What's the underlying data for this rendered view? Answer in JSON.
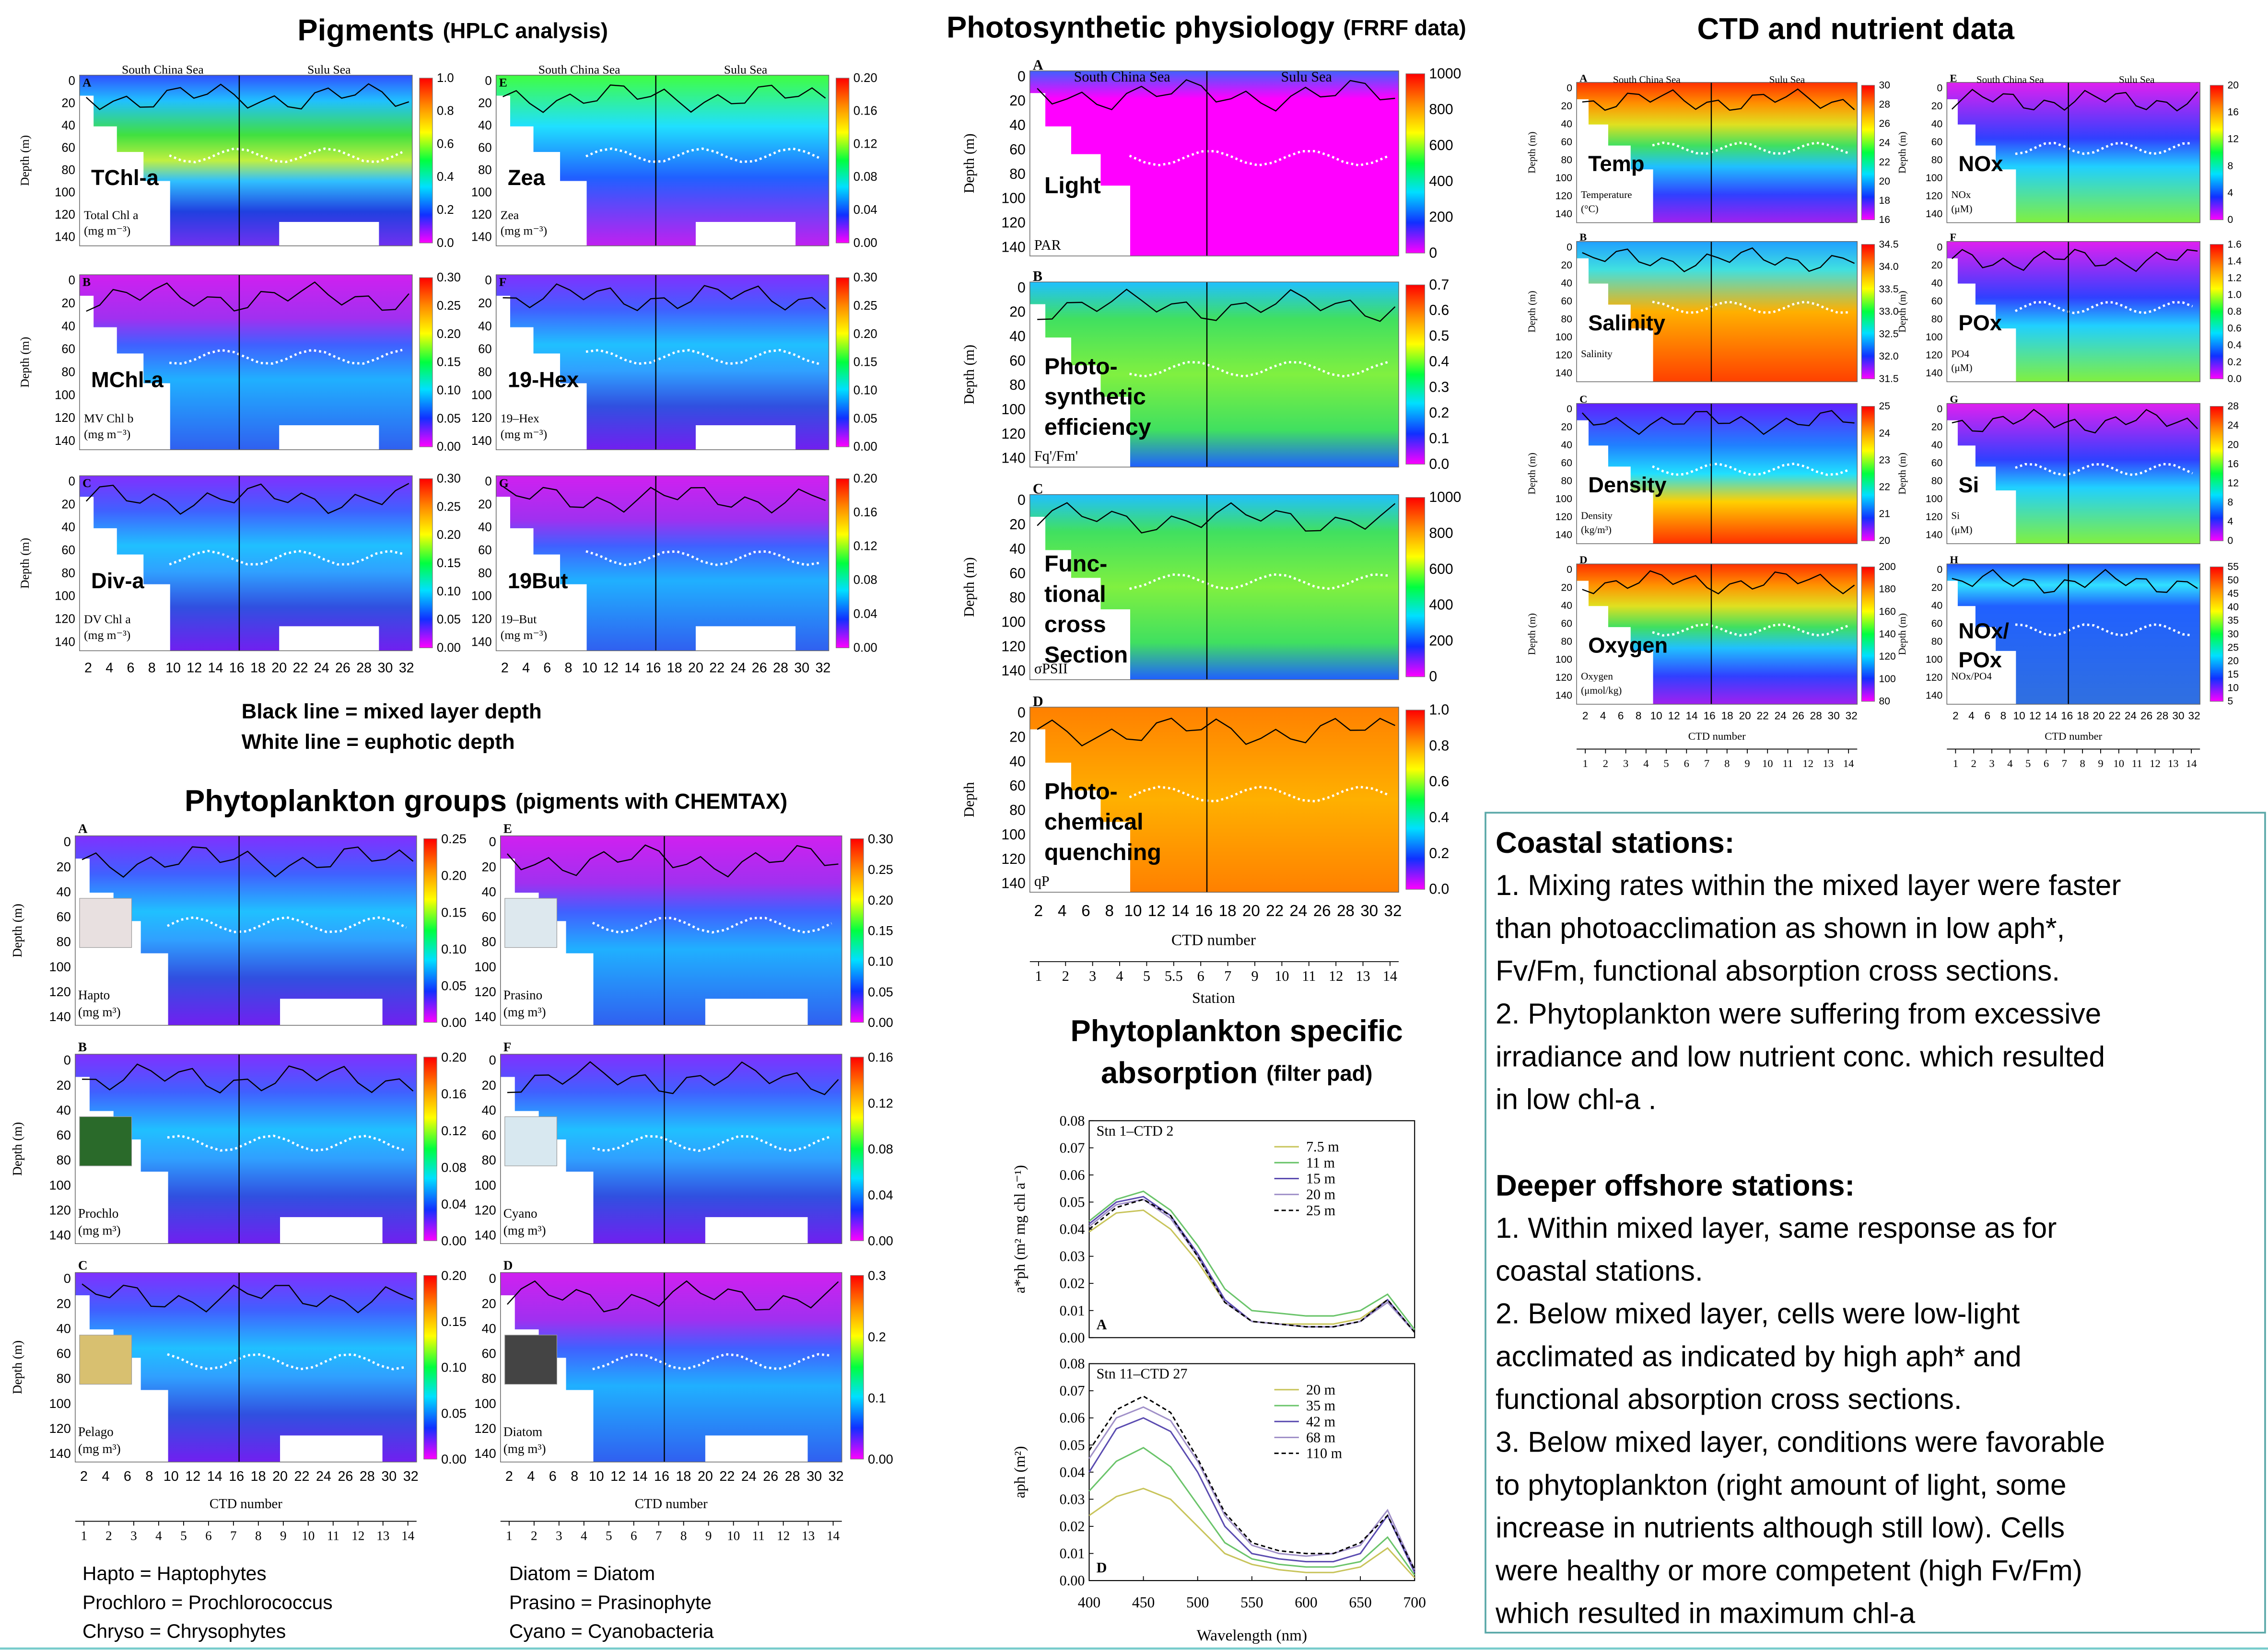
{
  "common": {
    "depth_label": "Depth (m)",
    "depth_ticks": [
      0,
      20,
      40,
      60,
      80,
      100,
      120,
      140
    ],
    "ctd_ticks": [
      2,
      4,
      6,
      8,
      10,
      12,
      14,
      16,
      18,
      20,
      22,
      24,
      26,
      28,
      30,
      32
    ],
    "ctd_label": "CTD number",
    "station_ticks": [
      1,
      2,
      3,
      4,
      5,
      6,
      7,
      8,
      9,
      10,
      11,
      12,
      13,
      14
    ],
    "region_left": "South China Sea",
    "region_right": "Sulu Sea"
  },
  "pigments": {
    "title": "Pigments",
    "subtitle": "(HPLC analysis)",
    "panels": [
      {
        "letter": "A",
        "name": "TChl-a",
        "label": "Total Chl a",
        "unit": "(mg m⁻³)",
        "cbar": [
          "0.0",
          "0.2",
          "0.4",
          "0.6",
          "0.8",
          "1.0"
        ]
      },
      {
        "letter": "B",
        "name": "MChl-a",
        "label": "MV Chl b",
        "unit": "(mg m⁻³)",
        "cbar": [
          "0.00",
          "0.05",
          "0.10",
          "0.15",
          "0.20",
          "0.25",
          "0.30"
        ]
      },
      {
        "letter": "C",
        "name": "Div-a",
        "label": "DV Chl a",
        "unit": "(mg m⁻³)",
        "cbar": [
          "0.00",
          "0.05",
          "0.10",
          "0.15",
          "0.20",
          "0.25",
          "0.30"
        ]
      },
      {
        "letter": "E",
        "name": "Zea",
        "label": "Zea",
        "unit": "(mg m⁻³)",
        "cbar": [
          "0.00",
          "0.04",
          "0.08",
          "0.12",
          "0.16",
          "0.20"
        ]
      },
      {
        "letter": "F",
        "name": "19-Hex",
        "label": "19–Hex",
        "unit": "(mg m⁻³)",
        "cbar": [
          "0.00",
          "0.05",
          "0.10",
          "0.15",
          "0.20",
          "0.25",
          "0.30"
        ]
      },
      {
        "letter": "G",
        "name": "19But",
        "label": "19–But",
        "unit": "(mg m⁻³)",
        "cbar": [
          "0.00",
          "0.04",
          "0.08",
          "0.12",
          "0.16",
          "0.20"
        ]
      }
    ],
    "legend": [
      "Black line =  mixed layer depth",
      "White line =  euphotic depth"
    ]
  },
  "groups": {
    "title": "Phytoplankton groups",
    "subtitle": "(pigments with CHEMTAX)",
    "panels": [
      {
        "letter": "A",
        "label": "Hapto",
        "unit": "(mg m³)",
        "cbar": [
          "0.00",
          "0.05",
          "0.10",
          "0.15",
          "0.20",
          "0.25"
        ]
      },
      {
        "letter": "B",
        "label": "Prochlo",
        "unit": "(mg m³)",
        "cbar": [
          "0.00",
          "0.04",
          "0.08",
          "0.12",
          "0.16",
          "0.20"
        ]
      },
      {
        "letter": "C",
        "label": "Pelago",
        "unit": "(mg m³)",
        "cbar": [
          "0.00",
          "0.05",
          "0.10",
          "0.15",
          "0.20"
        ]
      },
      {
        "letter": "E",
        "label": "Prasino",
        "unit": "(mg m³)",
        "cbar": [
          "0.00",
          "0.05",
          "0.10",
          "0.15",
          "0.20",
          "0.25",
          "0.30"
        ]
      },
      {
        "letter": "F",
        "label": "Cyano",
        "unit": "(mg m³)",
        "cbar": [
          "0.00",
          "0.04",
          "0.08",
          "0.12",
          "0.16"
        ]
      },
      {
        "letter": "D",
        "label": "Diatom",
        "unit": "(mg m³)",
        "cbar": [
          "0.00",
          "0.1",
          "0.2",
          "0.3"
        ]
      }
    ],
    "legend_left": [
      "Hapto = Haptophytes",
      "Prochloro = Prochlorococcus",
      "Chryso = Chrysophytes"
    ],
    "legend_right": [
      "Diatom = Diatom",
      "Prasino = Prasinophyte",
      "Cyano = Cyanobacteria"
    ]
  },
  "physiology": {
    "title": "Photosynthetic physiology",
    "subtitle": "(FRRF  data)",
    "panels": [
      {
        "letter": "A",
        "name": [
          "Light"
        ],
        "label": "PAR",
        "cbar": [
          "0",
          "200",
          "400",
          "600",
          "800",
          "1000"
        ]
      },
      {
        "letter": "B",
        "name": [
          "Photo-",
          "synthetic",
          "efficiency"
        ],
        "label": "Fq'/Fm'",
        "cbar": [
          "0.0",
          "0.1",
          "0.2",
          "0.3",
          "0.4",
          "0.5",
          "0.6",
          "0.7"
        ]
      },
      {
        "letter": "C",
        "name": [
          "Func-",
          "tional",
          "cross",
          "Section"
        ],
        "label": "σPSII",
        "cbar": [
          "0",
          "200",
          "400",
          "600",
          "800",
          "1000"
        ]
      },
      {
        "letter": "D",
        "name": [
          "Photo-",
          "chemical",
          "quenching"
        ],
        "label": "qP",
        "cbar": [
          "0.0",
          "0.2",
          "0.4",
          "0.6",
          "0.8",
          "1.0"
        ],
        "ylabel": "Depth"
      }
    ],
    "station_ticks": [
      1,
      2,
      3,
      4,
      5,
      5.5,
      6,
      7,
      9,
      10,
      11,
      12,
      13,
      14
    ],
    "station_label": "Station"
  },
  "ctd": {
    "title": "CTD and nutrient data",
    "panels": [
      {
        "letter": "A",
        "name": [
          "Temp"
        ],
        "label": "Temperature",
        "unit": "(°C)",
        "cbar": [
          "16",
          "18",
          "20",
          "22",
          "24",
          "26",
          "28",
          "30"
        ]
      },
      {
        "letter": "B",
        "name": [
          "Salinity"
        ],
        "label": "Salinity",
        "cbar": [
          "31.5",
          "32.0",
          "32.5",
          "33.0",
          "33.5",
          "34.0",
          "34.5"
        ]
      },
      {
        "letter": "C",
        "name": [
          "Density"
        ],
        "label": "Density",
        "unit": "(kg/m³)",
        "cbar": [
          "20",
          "21",
          "22",
          "23",
          "24",
          "25"
        ]
      },
      {
        "letter": "D",
        "name": [
          "Oxygen"
        ],
        "label": "Oxygen",
        "unit": "(μmol/kg)",
        "cbar": [
          "80",
          "100",
          "120",
          "140",
          "160",
          "180",
          "200"
        ]
      },
      {
        "letter": "E",
        "name": [
          "NOx"
        ],
        "label": "NOx",
        "unit": "(μM)",
        "cbar": [
          "0",
          "4",
          "8",
          "12",
          "16",
          "20"
        ]
      },
      {
        "letter": "F",
        "name": [
          "POx"
        ],
        "label": "PO4",
        "unit": "(μM)",
        "cbar": [
          "0.0",
          "0.2",
          "0.4",
          "0.6",
          "0.8",
          "1.0",
          "1.2",
          "1.4",
          "1.6"
        ]
      },
      {
        "letter": "G",
        "name": [
          "Si"
        ],
        "label": "Si",
        "unit": "(μM)",
        "cbar": [
          "0",
          "4",
          "8",
          "12",
          "16",
          "20",
          "24",
          "28"
        ]
      },
      {
        "letter": "H",
        "name": [
          "NOx/",
          "POx"
        ],
        "label": "NOx/PO4",
        "cbar": [
          "5",
          "10",
          "15",
          "20",
          "25",
          "30",
          "35",
          "40",
          "45",
          "50",
          "55"
        ]
      }
    ]
  },
  "absorption": {
    "title": [
      "Phytoplankton specific",
      "absorption"
    ],
    "subtitle": "(filter pad)"
  },
  "chart_data": [
    {
      "type": "line",
      "title": "Stn 1–CTD 2",
      "letter": "A",
      "ylabel": "a*ph (m² mg chl a⁻¹)",
      "x": [
        400,
        425,
        450,
        475,
        500,
        525,
        550,
        575,
        600,
        625,
        650,
        675,
        700
      ],
      "xlim": [
        400,
        700
      ],
      "ylim": [
        0,
        0.08
      ],
      "yticks": [
        {
          "value": 0,
          "label": "0.00"
        },
        {
          "value": 0.01,
          "label": "0.01"
        },
        {
          "value": 0.02,
          "label": "0.02"
        },
        {
          "value": 0.03,
          "label": "0.03"
        },
        {
          "value": 0.04,
          "label": "0.04"
        },
        {
          "value": 0.05,
          "label": "0.05"
        },
        {
          "value": 0.06,
          "label": "0.06"
        },
        {
          "value": 0.07,
          "label": "0.07"
        },
        {
          "value": 0.08,
          "label": "0.08"
        }
      ],
      "series": [
        {
          "name": "7.5 m",
          "color": "#c8c45a",
          "values": [
            0.039,
            0.046,
            0.047,
            0.04,
            0.028,
            0.013,
            0.006,
            0.005,
            0.005,
            0.005,
            0.007,
            0.014,
            0.002
          ]
        },
        {
          "name": "11 m",
          "color": "#6ac46a",
          "values": [
            0.043,
            0.051,
            0.054,
            0.047,
            0.034,
            0.018,
            0.01,
            0.009,
            0.008,
            0.008,
            0.01,
            0.016,
            0.003
          ]
        },
        {
          "name": "15 m",
          "color": "#5a4bb0",
          "values": [
            0.042,
            0.05,
            0.052,
            0.045,
            0.031,
            0.014,
            0.006,
            0.005,
            0.004,
            0.004,
            0.006,
            0.014,
            0.002
          ]
        },
        {
          "name": "20 m",
          "color": "#a090c8",
          "values": [
            0.041,
            0.049,
            0.051,
            0.044,
            0.03,
            0.013,
            0.006,
            0.005,
            0.004,
            0.004,
            0.006,
            0.013,
            0.002
          ]
        },
        {
          "name": "25 m",
          "color": "#000000",
          "dash": true,
          "values": [
            0.04,
            0.048,
            0.051,
            0.045,
            0.03,
            0.013,
            0.006,
            0.005,
            0.004,
            0.004,
            0.006,
            0.014,
            0.002
          ]
        }
      ]
    },
    {
      "type": "line",
      "title": "Stn 11–CTD 27",
      "letter": "D",
      "ylabel": "aph (m²)",
      "xlabel": "Wavelength (nm)",
      "x": [
        400,
        425,
        450,
        475,
        500,
        525,
        550,
        575,
        600,
        625,
        650,
        675,
        700
      ],
      "xlim": [
        400,
        700
      ],
      "xticks": [
        400,
        450,
        500,
        550,
        600,
        650,
        700
      ],
      "ylim": [
        0,
        0.08
      ],
      "yticks": [
        {
          "value": 0,
          "label": "0.00"
        },
        {
          "value": 0.01,
          "label": "0.01"
        },
        {
          "value": 0.02,
          "label": "0.02"
        },
        {
          "value": 0.03,
          "label": "0.03"
        },
        {
          "value": 0.04,
          "label": "0.04"
        },
        {
          "value": 0.05,
          "label": "0.05"
        },
        {
          "value": 0.06,
          "label": "0.06"
        },
        {
          "value": 0.07,
          "label": "0.07"
        },
        {
          "value": 0.08,
          "label": "0.08"
        }
      ],
      "series": [
        {
          "name": "20 m",
          "color": "#c8c45a",
          "values": [
            0.024,
            0.031,
            0.034,
            0.03,
            0.02,
            0.01,
            0.006,
            0.004,
            0.003,
            0.003,
            0.005,
            0.012,
            0.001
          ]
        },
        {
          "name": "35 m",
          "color": "#6ac46a",
          "values": [
            0.033,
            0.044,
            0.049,
            0.042,
            0.028,
            0.014,
            0.008,
            0.006,
            0.005,
            0.005,
            0.007,
            0.016,
            0.002
          ]
        },
        {
          "name": "42 m",
          "color": "#5a4bb0",
          "values": [
            0.04,
            0.056,
            0.06,
            0.055,
            0.04,
            0.02,
            0.01,
            0.008,
            0.007,
            0.007,
            0.01,
            0.024,
            0.003
          ]
        },
        {
          "name": "68 m",
          "color": "#a090c8",
          "values": [
            0.045,
            0.06,
            0.064,
            0.059,
            0.044,
            0.024,
            0.013,
            0.01,
            0.009,
            0.01,
            0.013,
            0.026,
            0.004
          ]
        },
        {
          "name": "110 m",
          "color": "#000000",
          "dash": true,
          "values": [
            0.048,
            0.063,
            0.068,
            0.062,
            0.045,
            0.025,
            0.014,
            0.011,
            0.01,
            0.01,
            0.014,
            0.024,
            0.004
          ]
        }
      ]
    }
  ],
  "notes": {
    "coastal_title": "Coastal stations:",
    "coastal": [
      "1. Mixing rates within the mixed layer were faster",
      "than photoacclimation as shown in low aph*,",
      "Fv/Fm, functional absorption cross sections.",
      "2. Phytoplankton were suffering from excessive",
      "irradiance and low nutrient conc. which resulted",
      "in low  chl-a ."
    ],
    "offshore_title": "Deeper offshore stations:",
    "offshore": [
      "1. Within mixed layer, same response as  for",
      "coastal stations.",
      "2. Below mixed layer, cells were low-light",
      "acclimated as indicated by high aph*  and",
      "functional absorption cross sections.",
      "3. Below mixed layer, conditions were favorable",
      "to phytoplankton (right amount of light, some",
      "increase in nutrients although still low). Cells",
      "were healthy or more competent (high Fv/Fm)",
      "which resulted in maximum chl-a"
    ]
  }
}
